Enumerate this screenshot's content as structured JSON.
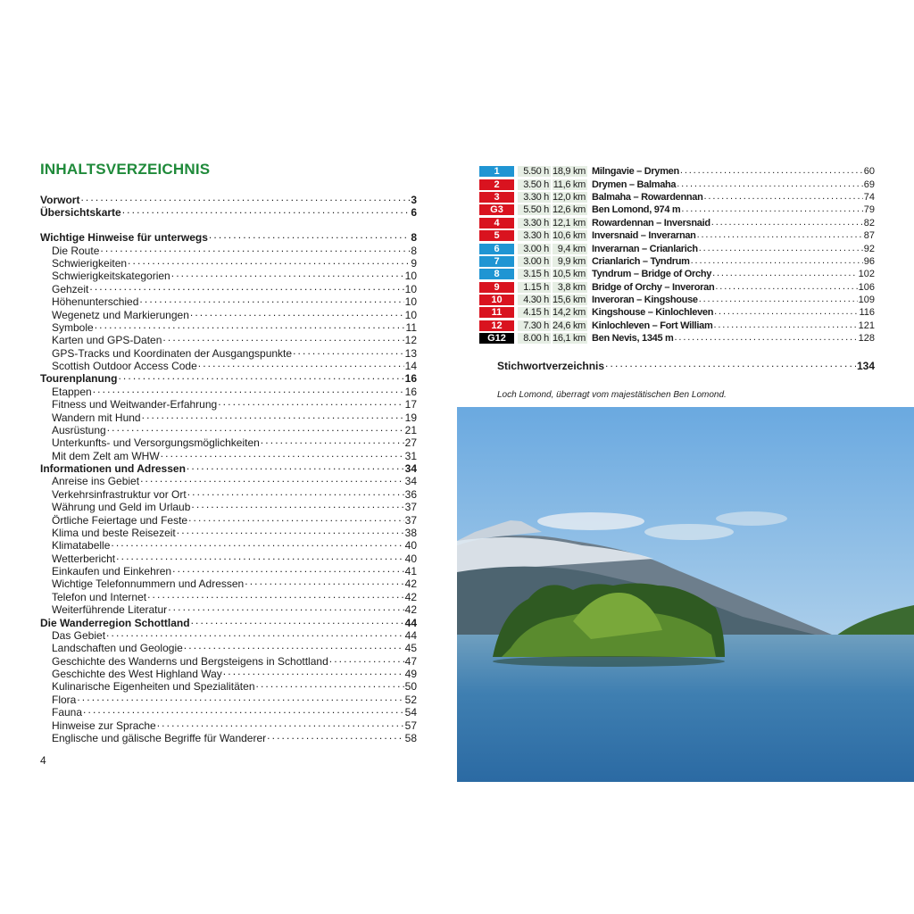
{
  "title": "INHALTSVERZEICHNIS",
  "folio": "4",
  "toc": [
    {
      "label": "Vorwort",
      "page": "3",
      "level": "main"
    },
    {
      "label": "Übersichtskarte",
      "page": "6",
      "level": "main"
    },
    {
      "label": "Wichtige Hinweise für unterwegs",
      "page": "8",
      "level": "main",
      "gap": true
    },
    {
      "label": "Die Route",
      "page": "8",
      "level": "sub"
    },
    {
      "label": "Schwierigkeiten",
      "page": "9",
      "level": "sub"
    },
    {
      "label": "Schwierigkeitskategorien",
      "page": "10",
      "level": "sub"
    },
    {
      "label": "Gehzeit",
      "page": "10",
      "level": "sub"
    },
    {
      "label": "Höhenunterschied",
      "page": "10",
      "level": "sub"
    },
    {
      "label": "Wegenetz und Markierungen",
      "page": "10",
      "level": "sub"
    },
    {
      "label": "Symbole",
      "page": "11",
      "level": "sub"
    },
    {
      "label": "Karten und GPS-Daten",
      "page": "12",
      "level": "sub"
    },
    {
      "label": "GPS-Tracks und Koordinaten der Ausgangspunkte",
      "page": "13",
      "level": "sub"
    },
    {
      "label": "Scottish Outdoor Access Code",
      "page": "14",
      "level": "sub"
    },
    {
      "label": "Tourenplanung",
      "page": "16",
      "level": "main"
    },
    {
      "label": "Etappen",
      "page": "16",
      "level": "sub"
    },
    {
      "label": "Fitness und Weitwander-Erfahrung",
      "page": "17",
      "level": "sub"
    },
    {
      "label": "Wandern mit Hund",
      "page": "19",
      "level": "sub"
    },
    {
      "label": "Ausrüstung",
      "page": "21",
      "level": "sub"
    },
    {
      "label": "Unterkunfts- und Versorgungsmöglichkeiten",
      "page": "27",
      "level": "sub"
    },
    {
      "label": "Mit dem Zelt am WHW",
      "page": "31",
      "level": "sub"
    },
    {
      "label": "Informationen und Adressen",
      "page": "34",
      "level": "main"
    },
    {
      "label": "Anreise ins Gebiet",
      "page": "34",
      "level": "sub"
    },
    {
      "label": "Verkehrsinfrastruktur vor Ort",
      "page": "36",
      "level": "sub"
    },
    {
      "label": "Währung und Geld im Urlaub",
      "page": "37",
      "level": "sub"
    },
    {
      "label": "Örtliche Feiertage und Feste",
      "page": "37",
      "level": "sub"
    },
    {
      "label": "Klima und beste Reisezeit",
      "page": "38",
      "level": "sub"
    },
    {
      "label": "Klimatabelle",
      "page": "40",
      "level": "sub"
    },
    {
      "label": "Wetterbericht",
      "page": "40",
      "level": "sub"
    },
    {
      "label": "Einkaufen und Einkehren",
      "page": "41",
      "level": "sub"
    },
    {
      "label": "Wichtige Telefonnummern und Adressen",
      "page": "42",
      "level": "sub"
    },
    {
      "label": "Telefon und Internet",
      "page": "42",
      "level": "sub"
    },
    {
      "label": "Weiterführende Literatur",
      "page": "42",
      "level": "sub"
    },
    {
      "label": "Die Wanderregion Schottland",
      "page": "44",
      "level": "main"
    },
    {
      "label": "Das Gebiet",
      "page": "44",
      "level": "sub"
    },
    {
      "label": "Landschaften und Geologie",
      "page": "45",
      "level": "sub"
    },
    {
      "label": "Geschichte des Wanderns und Bergsteigens in Schottland",
      "page": "47",
      "level": "sub"
    },
    {
      "label": "Geschichte des West Highland Way",
      "page": "49",
      "level": "sub"
    },
    {
      "label": "Kulinarische Eigenheiten und Spezialitäten",
      "page": "50",
      "level": "sub"
    },
    {
      "label": "Flora",
      "page": "52",
      "level": "sub"
    },
    {
      "label": "Fauna",
      "page": "54",
      "level": "sub"
    },
    {
      "label": "Hinweise zur Sprache",
      "page": "57",
      "level": "sub"
    },
    {
      "label": "Englische und gälische Begriffe für Wanderer",
      "page": "58",
      "level": "sub"
    }
  ],
  "colors": {
    "blue": "#1f95d3",
    "red": "#d9131f",
    "black": "#000000",
    "green": "#1f8a3a"
  },
  "stages": [
    {
      "badge": "1",
      "color": "blue",
      "time": "5.50 h",
      "km": "18,9 km",
      "name": "Milngavie – Drymen",
      "page": "60"
    },
    {
      "badge": "2",
      "color": "red",
      "time": "3.50 h",
      "km": "11,6 km",
      "name": "Drymen – Balmaha",
      "page": "69"
    },
    {
      "badge": "3",
      "color": "red",
      "time": "3.30 h",
      "km": "12,0 km",
      "name": "Balmaha – Rowardennan",
      "page": "74"
    },
    {
      "badge": "G3",
      "color": "red",
      "time": "5.50 h",
      "km": "12,6 km",
      "name": "Ben Lomond, 974 m",
      "page": "79"
    },
    {
      "badge": "4",
      "color": "red",
      "time": "3.30 h",
      "km": "12,1 km",
      "name": "Rowardennan – Inversnaid",
      "page": "82"
    },
    {
      "badge": "5",
      "color": "red",
      "time": "3.30 h",
      "km": "10,6 km",
      "name": "Inversnaid – Inverarnan",
      "page": "87"
    },
    {
      "badge": "6",
      "color": "blue",
      "time": "3.00 h",
      "km": "9,4 km",
      "name": "Inverarnan – Crianlarich",
      "page": "92"
    },
    {
      "badge": "7",
      "color": "blue",
      "time": "3.00 h",
      "km": "9,9 km",
      "name": "Crianlarich – Tyndrum",
      "page": "96"
    },
    {
      "badge": "8",
      "color": "blue",
      "time": "3.15 h",
      "km": "10,5 km",
      "name": "Tyndrum – Bridge of Orchy",
      "page": "102"
    },
    {
      "badge": "9",
      "color": "red",
      "time": "1.15 h",
      "km": "3,8 km",
      "name": "Bridge of Orchy – Inveroran",
      "page": "106"
    },
    {
      "badge": "10",
      "color": "red",
      "time": "4.30 h",
      "km": "15,6 km",
      "name": "Inveroran – Kingshouse",
      "page": "109"
    },
    {
      "badge": "11",
      "color": "red",
      "time": "4.15 h",
      "km": "14,2 km",
      "name": "Kingshouse – Kinlochleven",
      "page": "116"
    },
    {
      "badge": "12",
      "color": "red",
      "time": "7.30 h",
      "km": "24,6 km",
      "name": "Kinlochleven – Fort William",
      "page": "121"
    },
    {
      "badge": "G12",
      "color": "black",
      "time": "8.00 h",
      "km": "16,1 km",
      "name": "Ben Nevis, 1345 m",
      "page": "128"
    }
  ],
  "index": {
    "label": "Stichwortverzeichnis",
    "page": "134"
  },
  "caption": "Loch Lomond, überragt vom majestätischen Ben Lomond."
}
